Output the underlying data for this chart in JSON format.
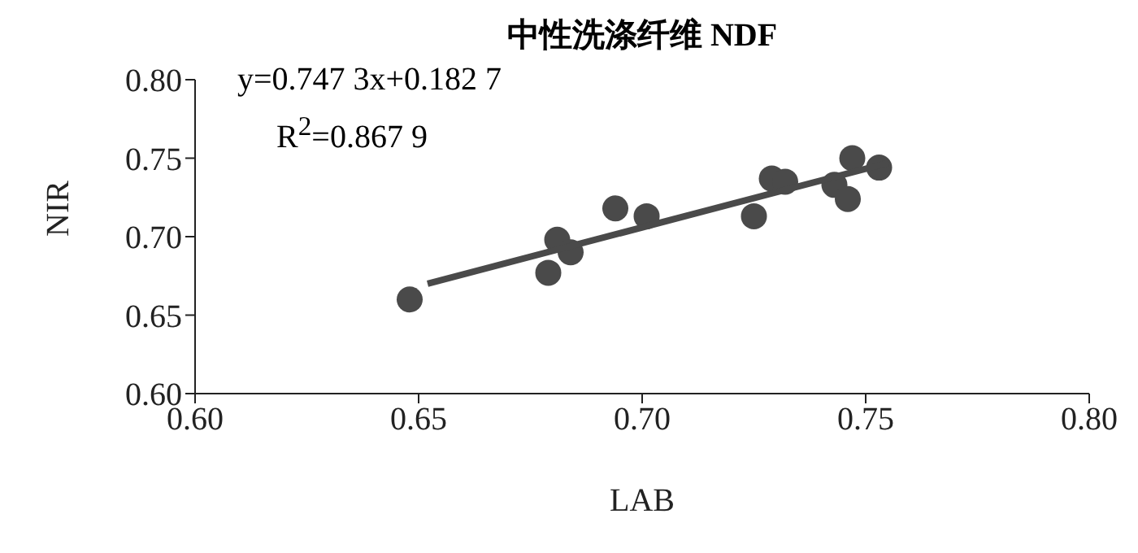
{
  "chart_data": {
    "type": "scatter",
    "title": "中性洗涤纤维 NDF",
    "xlabel": "LAB",
    "ylabel": "NIR",
    "annotations": [
      "y=0.747 3x+0.182 7",
      "R$^{2}$=0.867 9"
    ],
    "xlim": [
      0.6,
      0.8
    ],
    "xticks": [
      {
        "value": 0.6,
        "label": "0.60"
      },
      {
        "value": 0.65,
        "label": "0.65"
      },
      {
        "value": 0.7,
        "label": "0.70"
      },
      {
        "value": 0.75,
        "label": "0.75"
      },
      {
        "value": 0.8,
        "label": "0.80"
      }
    ],
    "ylim": [
      0.6,
      0.8
    ],
    "yticks": [
      {
        "value": 0.6,
        "label": "0.60"
      },
      {
        "value": 0.65,
        "label": "0.65"
      },
      {
        "value": 0.7,
        "label": "0.70"
      },
      {
        "value": 0.75,
        "label": "0.75"
      },
      {
        "value": 0.8,
        "label": "0.80"
      }
    ],
    "grid": false,
    "legend": false,
    "marker": "circle",
    "series": [
      {
        "color": "#4a4a4a",
        "x": [
          0.648,
          0.679,
          0.681,
          0.684,
          0.694,
          0.701,
          0.725,
          0.729,
          0.732,
          0.743,
          0.746,
          0.747,
          0.753
        ],
        "values": [
          0.66,
          0.677,
          0.698,
          0.69,
          0.718,
          0.713,
          0.713,
          0.737,
          0.735,
          0.733,
          0.724,
          0.75,
          0.744
        ]
      },
      {
        "type": "line",
        "color": "#4a4a4a",
        "marker": "none",
        "x": [
          0.652,
          0.755
        ],
        "values": [
          0.67,
          0.747
        ]
      }
    ]
  }
}
